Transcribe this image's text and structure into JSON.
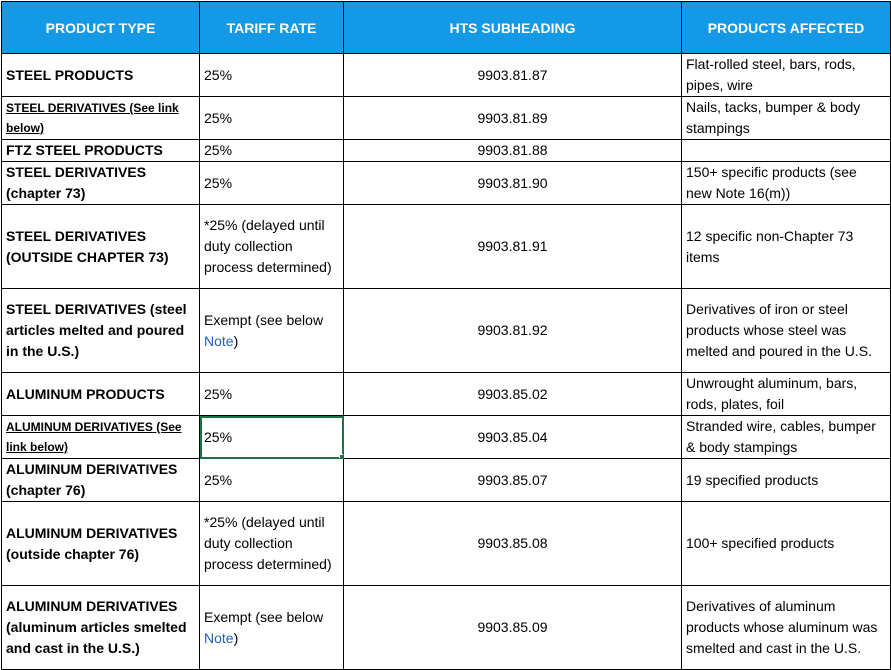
{
  "headers": [
    "PRODUCT TYPE",
    "TARIFF RATE",
    "HTS SUBHEADING",
    "PRODUCTS AFFECTED"
  ],
  "rows": [
    {
      "type": "STEEL PRODUCTS",
      "rate": "25%",
      "rate_link": "",
      "rate_tail": "",
      "hts": "9903.81.87",
      "products": "Flat-rolled steel, bars, rods, pipes, wire"
    },
    {
      "type": "STEEL DERIVATIVES (See link below)",
      "rate": "25%",
      "rate_link": "",
      "rate_tail": "",
      "hts": "9903.81.89",
      "products": "Nails, tacks, bumper & body stampings"
    },
    {
      "type": "FTZ STEEL PRODUCTS",
      "rate": "25%",
      "rate_link": "",
      "rate_tail": "",
      "hts": "9903.81.88",
      "products": ""
    },
    {
      "type": "STEEL DERIVATIVES (chapter 73)",
      "rate": "25%",
      "rate_link": "",
      "rate_tail": "",
      "hts": "9903.81.90",
      "products": "150+ specific products (see new Note 16(m))"
    },
    {
      "type": "STEEL DERIVATIVES (OUTSIDE CHAPTER 73)",
      "rate": "*25% (delayed until duty collection process determined)",
      "rate_link": "",
      "rate_tail": "",
      "hts": "9903.81.91",
      "products": "12 specific non-Chapter 73 items"
    },
    {
      "type": "STEEL DERIVATIVES (steel articles melted and poured in the U.S.)",
      "rate": "Exempt (see below ",
      "rate_link": "Note",
      "rate_tail": ")",
      "hts": "9903.81.92",
      "products": "Derivatives of iron or steel products whose steel was melted and poured in the U.S."
    },
    {
      "type": "ALUMINUM PRODUCTS",
      "rate": "25%",
      "rate_link": "",
      "rate_tail": "",
      "hts": "9903.85.02",
      "products": "Unwrought aluminum, bars, rods, plates, foil"
    },
    {
      "type": "ALUMINUM DERIVATIVES (See link below)",
      "rate": "25%",
      "rate_link": "",
      "rate_tail": "",
      "hts": "9903.85.04",
      "products": "Stranded wire, cables, bumper & body stampings"
    },
    {
      "type": "ALUMINUM DERIVATIVES (chapter 76)",
      "rate": "25%",
      "rate_link": "",
      "rate_tail": "",
      "hts": "9903.85.07",
      "products": "19 specified products"
    },
    {
      "type": "ALUMINUM DERIVATIVES (outside chapter 76)",
      "rate": "*25% (delayed until duty collection process determined)",
      "rate_link": "",
      "rate_tail": "",
      "hts": "9903.85.08",
      "products": "100+ specified products"
    },
    {
      "type": "ALUMINUM DERIVATIVES (aluminum articles smelted and cast in the U.S.)",
      "rate": "Exempt (see below ",
      "rate_link": "Note",
      "rate_tail": ")",
      "hts": "9903.85.09",
      "products": "Derivatives of aluminum products whose aluminum was smelted and cast in the U.S."
    }
  ]
}
